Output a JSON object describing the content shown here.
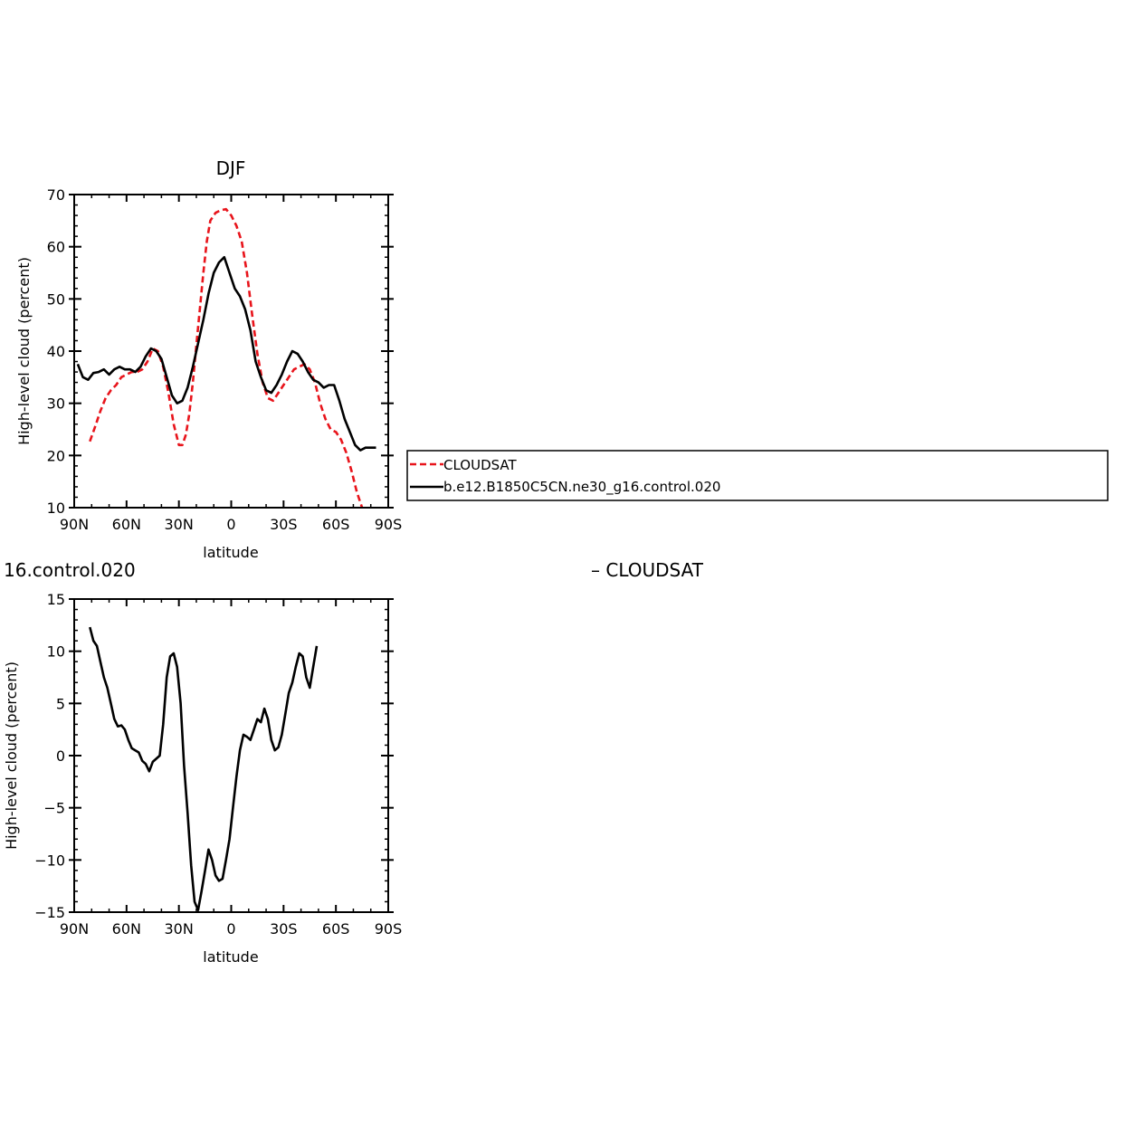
{
  "chart_data": [
    {
      "type": "line",
      "title": "DJF",
      "xlabel": "latitude",
      "ylabel": "High-level cloud (percent)",
      "xlim": [
        90,
        -90
      ],
      "ylim": [
        10,
        70
      ],
      "x_ticks": [
        {
          "value": 90,
          "label": "90N"
        },
        {
          "value": 60,
          "label": "60N"
        },
        {
          "value": 30,
          "label": "30N"
        },
        {
          "value": 0,
          "label": "0"
        },
        {
          "value": -30,
          "label": "30S"
        },
        {
          "value": -60,
          "label": "60S"
        },
        {
          "value": -90,
          "label": "90S"
        }
      ],
      "y_ticks": [
        {
          "value": 70,
          "label": "70"
        },
        {
          "value": 60,
          "label": "60"
        },
        {
          "value": 50,
          "label": "50"
        },
        {
          "value": 40,
          "label": "40"
        },
        {
          "value": 30,
          "label": "30"
        },
        {
          "value": 20,
          "label": "20"
        },
        {
          "value": 10,
          "label": "10"
        }
      ],
      "legend": "outside-right",
      "series": [
        {
          "name": "CLOUDSAT",
          "color": "#e8141b",
          "dash": "dashed",
          "points": [
            [
              81,
              22.7
            ],
            [
              78,
              25.5
            ],
            [
              75,
              28.5
            ],
            [
              72,
              31
            ],
            [
              69,
              32.5
            ],
            [
              66,
              33.5
            ],
            [
              63,
              35
            ],
            [
              60,
              35.5
            ],
            [
              57,
              36
            ],
            [
              54,
              36
            ],
            [
              51,
              36.5
            ],
            [
              48,
              38
            ],
            [
              45,
              40.5
            ],
            [
              42,
              40
            ],
            [
              39,
              37
            ],
            [
              36,
              32
            ],
            [
              33,
              26
            ],
            [
              30,
              22
            ],
            [
              28,
              22
            ],
            [
              26,
              24
            ],
            [
              24,
              28
            ],
            [
              22,
              34
            ],
            [
              20,
              41
            ],
            [
              18,
              48
            ],
            [
              16,
              55
            ],
            [
              14,
              61
            ],
            [
              12,
              65
            ],
            [
              9,
              66.5
            ],
            [
              6,
              67
            ],
            [
              3,
              67.2
            ],
            [
              0,
              66
            ],
            [
              -3,
              64
            ],
            [
              -6,
              61
            ],
            [
              -9,
              55
            ],
            [
              -12,
              47
            ],
            [
              -15,
              39.5
            ],
            [
              -18,
              34
            ],
            [
              -21,
              31
            ],
            [
              -24,
              30.5
            ],
            [
              -27,
              32
            ],
            [
              -30,
              33.5
            ],
            [
              -33,
              35
            ],
            [
              -36,
              36.5
            ],
            [
              -39,
              37
            ],
            [
              -42,
              37.5
            ],
            [
              -45,
              36.5
            ],
            [
              -48,
              34
            ],
            [
              -51,
              30
            ],
            [
              -54,
              27
            ],
            [
              -57,
              25
            ],
            [
              -60,
              24.5
            ],
            [
              -63,
              23
            ],
            [
              -66,
              20.5
            ],
            [
              -69,
              17
            ],
            [
              -72,
              13
            ],
            [
              -75,
              10
            ]
          ]
        },
        {
          "name": "b.e12.B1850C5CN.ne30_g16.control.020",
          "color": "#000000",
          "dash": "solid",
          "points": [
            [
              88,
              37.5
            ],
            [
              85,
              35
            ],
            [
              82,
              34.5
            ],
            [
              79,
              35.8
            ],
            [
              76,
              36
            ],
            [
              73,
              36.5
            ],
            [
              70,
              35.5
            ],
            [
              67,
              36.5
            ],
            [
              64,
              37
            ],
            [
              61,
              36.5
            ],
            [
              58,
              36.5
            ],
            [
              55,
              36
            ],
            [
              52,
              37
            ],
            [
              49,
              39
            ],
            [
              46,
              40.5
            ],
            [
              43,
              40
            ],
            [
              40,
              38.5
            ],
            [
              37,
              35
            ],
            [
              34,
              31.5
            ],
            [
              31,
              30
            ],
            [
              28,
              30.5
            ],
            [
              25,
              33
            ],
            [
              22,
              37
            ],
            [
              19,
              41.5
            ],
            [
              16,
              46
            ],
            [
              13,
              51
            ],
            [
              10,
              55
            ],
            [
              7,
              57
            ],
            [
              4,
              58
            ],
            [
              1,
              55
            ],
            [
              -2,
              52
            ],
            [
              -5,
              50.5
            ],
            [
              -8,
              48
            ],
            [
              -11,
              44
            ],
            [
              -14,
              38
            ],
            [
              -17,
              35
            ],
            [
              -20,
              32.5
            ],
            [
              -23,
              32
            ],
            [
              -26,
              33.5
            ],
            [
              -29,
              35.5
            ],
            [
              -32,
              38
            ],
            [
              -35,
              40
            ],
            [
              -38,
              39.5
            ],
            [
              -41,
              38
            ],
            [
              -44,
              36
            ],
            [
              -47,
              34.5
            ],
            [
              -50,
              34
            ],
            [
              -53,
              33
            ],
            [
              -56,
              33.5
            ],
            [
              -59,
              33.5
            ],
            [
              -62,
              30.5
            ],
            [
              -65,
              27
            ],
            [
              -68,
              24.5
            ],
            [
              -71,
              22
            ],
            [
              -74,
              21
            ],
            [
              -77,
              21.5
            ],
            [
              -80,
              21.5
            ],
            [
              -83,
              21.5
            ]
          ]
        }
      ]
    },
    {
      "type": "line",
      "title": "16.control.020",
      "subtitle": "– CLOUDSAT",
      "xlabel": "latitude",
      "ylabel": "High-level cloud (percent)",
      "xlim": [
        90,
        -90
      ],
      "ylim": [
        -15,
        15
      ],
      "x_ticks": [
        {
          "value": 90,
          "label": "90N"
        },
        {
          "value": 60,
          "label": "60N"
        },
        {
          "value": 30,
          "label": "30N"
        },
        {
          "value": 0,
          "label": "0"
        },
        {
          "value": -30,
          "label": "30S"
        },
        {
          "value": -60,
          "label": "60S"
        },
        {
          "value": -90,
          "label": "90S"
        }
      ],
      "y_ticks": [
        {
          "value": 15,
          "label": "15"
        },
        {
          "value": 10,
          "label": "10"
        },
        {
          "value": 5,
          "label": "5"
        },
        {
          "value": 0,
          "label": "0"
        },
        {
          "value": -5,
          "label": "−5"
        },
        {
          "value": -10,
          "label": "−10"
        },
        {
          "value": -15,
          "label": "−15"
        }
      ],
      "series": [
        {
          "color": "#000000",
          "dash": "solid",
          "points": [
            [
              81,
              12.3
            ],
            [
              79,
              11
            ],
            [
              77,
              10.5
            ],
            [
              75,
              9
            ],
            [
              73,
              7.5
            ],
            [
              71,
              6.5
            ],
            [
              69,
              5
            ],
            [
              67,
              3.5
            ],
            [
              65,
              2.8
            ],
            [
              63,
              2.9
            ],
            [
              61,
              2.5
            ],
            [
              59,
              1.5
            ],
            [
              57,
              0.7
            ],
            [
              55,
              0.5
            ],
            [
              53,
              0.3
            ],
            [
              51,
              -0.5
            ],
            [
              49,
              -0.8
            ],
            [
              47,
              -1.5
            ],
            [
              45,
              -0.6
            ],
            [
              43,
              -0.3
            ],
            [
              41,
              0
            ],
            [
              39,
              3
            ],
            [
              37,
              7.5
            ],
            [
              35,
              9.5
            ],
            [
              33,
              9.8
            ],
            [
              31,
              8.5
            ],
            [
              29,
              5
            ],
            [
              27,
              -1
            ],
            [
              25,
              -5.5
            ],
            [
              23,
              -10.5
            ],
            [
              21,
              -14
            ],
            [
              19,
              -14.8
            ],
            [
              17,
              -13
            ],
            [
              15,
              -11
            ],
            [
              13,
              -9
            ],
            [
              11,
              -10
            ],
            [
              9,
              -11.5
            ],
            [
              7,
              -12
            ],
            [
              5,
              -11.8
            ],
            [
              3,
              -10
            ],
            [
              1,
              -8
            ],
            [
              -1,
              -5
            ],
            [
              -3,
              -2
            ],
            [
              -5,
              0.5
            ],
            [
              -7,
              2
            ],
            [
              -9,
              1.8
            ],
            [
              -11,
              1.5
            ],
            [
              -13,
              2.5
            ],
            [
              -15,
              3.5
            ],
            [
              -17,
              3.2
            ],
            [
              -19,
              4.5
            ],
            [
              -21,
              3.5
            ],
            [
              -23,
              1.5
            ],
            [
              -25,
              0.5
            ],
            [
              -27,
              0.8
            ],
            [
              -29,
              2
            ],
            [
              -31,
              4
            ],
            [
              -33,
              6
            ],
            [
              -35,
              7
            ],
            [
              -37,
              8.5
            ],
            [
              -39,
              9.8
            ],
            [
              -41,
              9.5
            ],
            [
              -43,
              7.5
            ],
            [
              -45,
              6.5
            ],
            [
              -47,
              8.5
            ],
            [
              -49,
              10.5
            ]
          ]
        }
      ]
    }
  ],
  "legend": {
    "entries": [
      {
        "label": "CLOUDSAT",
        "color": "#e8141b",
        "dash": "dashed"
      },
      {
        "label": "b.e12.B1850C5CN.ne30_g16.control.020",
        "color": "#000000",
        "dash": "solid"
      }
    ]
  }
}
